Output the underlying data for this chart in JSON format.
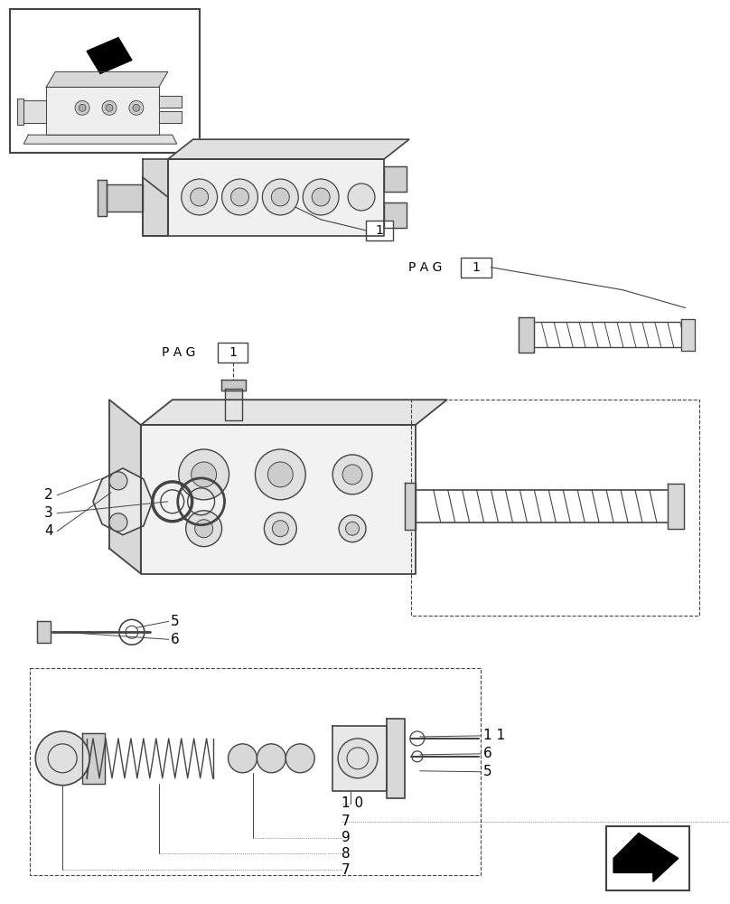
{
  "bg_color": "#ffffff",
  "line_color": "#444444",
  "fig_width": 8.08,
  "fig_height": 10.0,
  "dpi": 100
}
